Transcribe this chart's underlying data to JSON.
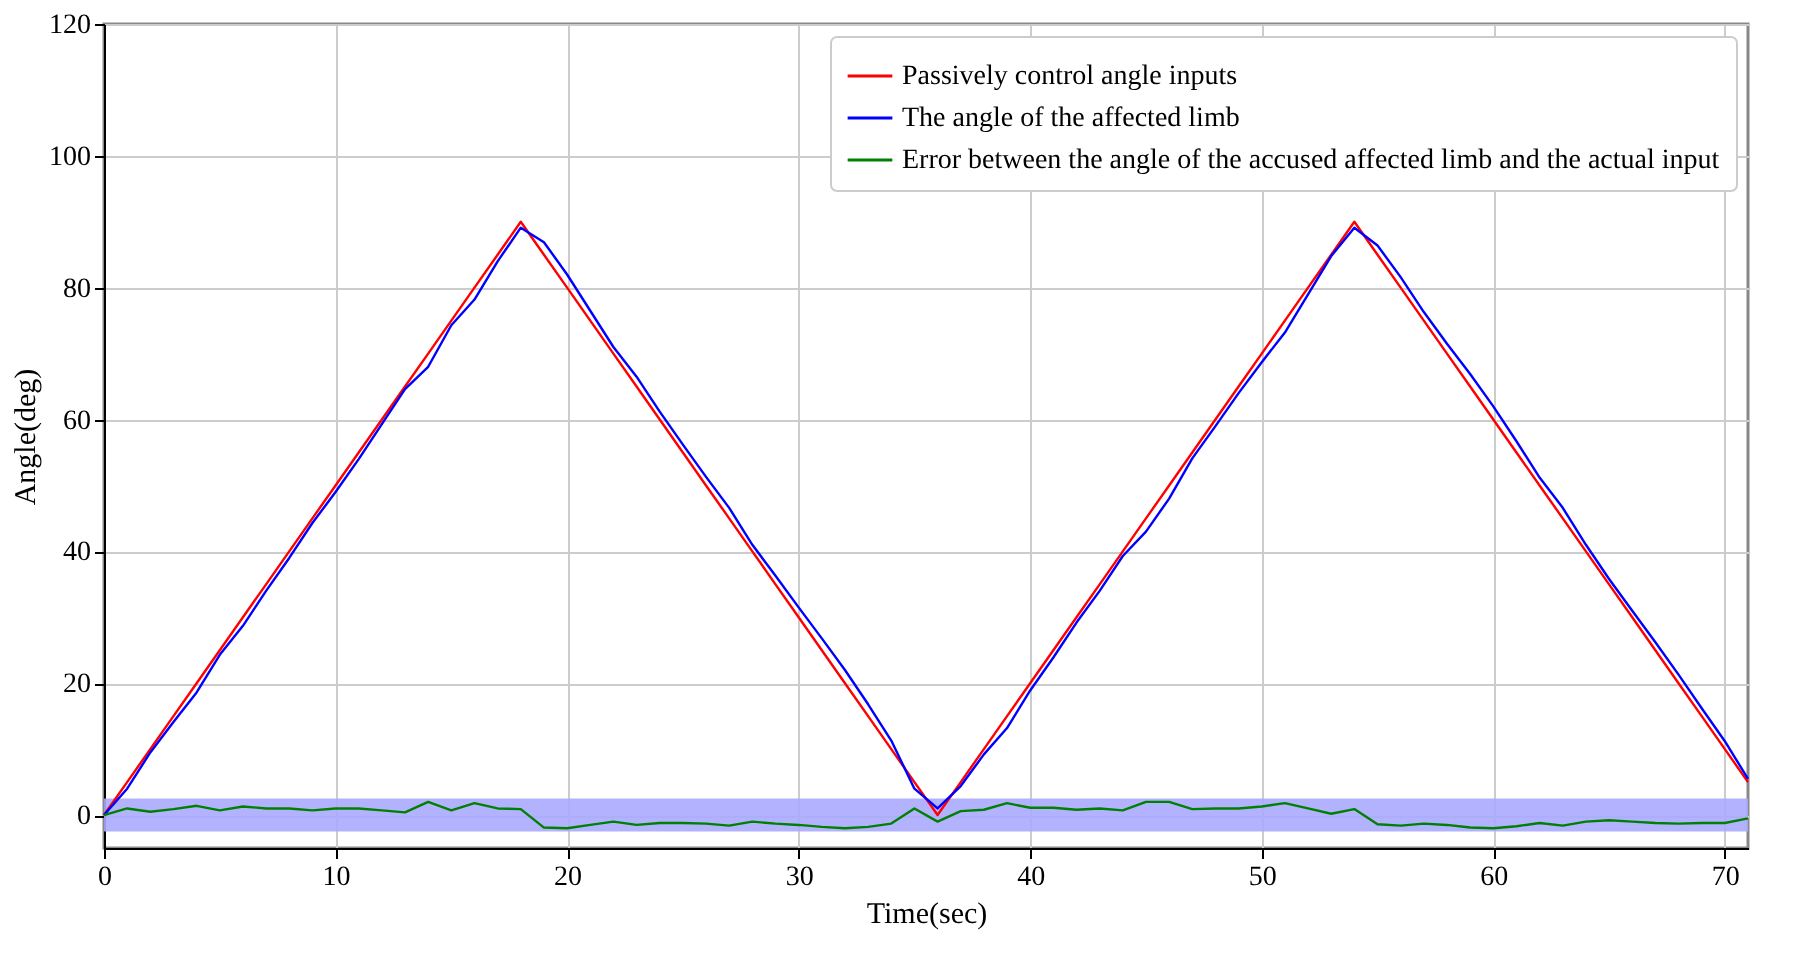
{
  "chart_data": {
    "type": "line",
    "xlabel": "Time(sec)",
    "ylabel": "Angle(deg)",
    "x": [
      0,
      1,
      2,
      3,
      4,
      5,
      6,
      7,
      8,
      9,
      10,
      11,
      12,
      13,
      14,
      15,
      16,
      17,
      18,
      19,
      20,
      21,
      22,
      23,
      24,
      25,
      26,
      27,
      28,
      29,
      30,
      31,
      32,
      33,
      34,
      35,
      36,
      37,
      38,
      39,
      40,
      41,
      42,
      43,
      44,
      45,
      46,
      47,
      48,
      49,
      50,
      51,
      52,
      53,
      54,
      55,
      56,
      57,
      58,
      59,
      60,
      61,
      62,
      63,
      64,
      65,
      66,
      67,
      68,
      69,
      70,
      71
    ],
    "series": [
      {
        "name": "Passively control angle inputs",
        "color": "#ff0000",
        "values": [
          0,
          5,
          10,
          15,
          20,
          25,
          30,
          35,
          40,
          45,
          50,
          55,
          60,
          65,
          70,
          75,
          80,
          85,
          90,
          85,
          80,
          75,
          70,
          65,
          60,
          55,
          50,
          45,
          40,
          35,
          30,
          25,
          20,
          15,
          10,
          5,
          0,
          5,
          10,
          15,
          20,
          25,
          30,
          35,
          40,
          45,
          50,
          55,
          60,
          65,
          70,
          75,
          80,
          85,
          90,
          85,
          80,
          75,
          70,
          65,
          60,
          55,
          50,
          45,
          40,
          35,
          30,
          25,
          20,
          15,
          10,
          5
        ]
      },
      {
        "name": "The angle of the affected limb",
        "color": "#0000ff",
        "values": [
          0,
          4,
          9.5,
          14.1,
          18.6,
          24.3,
          28.7,
          34,
          39,
          44.3,
          49,
          54,
          59.3,
          64.6,
          68,
          74.3,
          78.2,
          84,
          89.1,
          86.9,
          82,
          76.5,
          71,
          66.5,
          61.2,
          56.2,
          51.3,
          46.6,
          41,
          36.3,
          31.5,
          26.8,
          22,
          16.8,
          11.3,
          4,
          1,
          4.4,
          9.2,
          13.2,
          18.9,
          23.9,
          29.2,
          34,
          39.3,
          43,
          48,
          54.1,
          59,
          64,
          68.7,
          73.2,
          79,
          84.8,
          89.1,
          86.4,
          81.6,
          76.3,
          71.5,
          66.9,
          62,
          56.7,
          51.2,
          46.6,
          41,
          35.8,
          31,
          26.2,
          21.3,
          16.2,
          11.2,
          5.5
        ]
      },
      {
        "name": "Error between the angle of the accused affected limb and the actual input",
        "color": "#008000",
        "values": [
          0,
          1.0,
          0.5,
          0.9,
          1.4,
          0.7,
          1.3,
          1.0,
          1.0,
          0.7,
          1.0,
          1.0,
          0.7,
          0.4,
          2.0,
          0.7,
          1.8,
          1.0,
          0.9,
          -1.9,
          -2.0,
          -1.5,
          -1.0,
          -1.5,
          -1.2,
          -1.2,
          -1.3,
          -1.6,
          -1.0,
          -1.3,
          -1.5,
          -1.8,
          -2.0,
          -1.8,
          -1.3,
          1.0,
          -1.0,
          0.6,
          0.8,
          1.8,
          1.1,
          1.1,
          0.8,
          1.0,
          0.7,
          2.0,
          2.0,
          0.9,
          1.0,
          1.0,
          1.3,
          1.8,
          1.0,
          0.2,
          0.9,
          -1.4,
          -1.6,
          -1.3,
          -1.5,
          -1.9,
          -2.0,
          -1.7,
          -1.2,
          -1.6,
          -1.0,
          -0.8,
          -1.0,
          -1.2,
          -1.3,
          -1.2,
          -1.2,
          -0.5
        ]
      }
    ],
    "bands": [
      {
        "axis": "y",
        "from": -2.5,
        "to": 2.5,
        "color": "#aaaaff"
      }
    ],
    "xlim": [
      0,
      71
    ],
    "xticks": [
      0,
      10,
      20,
      30,
      40,
      50,
      60,
      70
    ],
    "ylim": [
      -5,
      120
    ],
    "yticks": [
      0,
      20,
      40,
      60,
      80,
      100,
      120
    ],
    "grid": true,
    "legend": "top right",
    "line_style": "solid",
    "marker": "none"
  }
}
